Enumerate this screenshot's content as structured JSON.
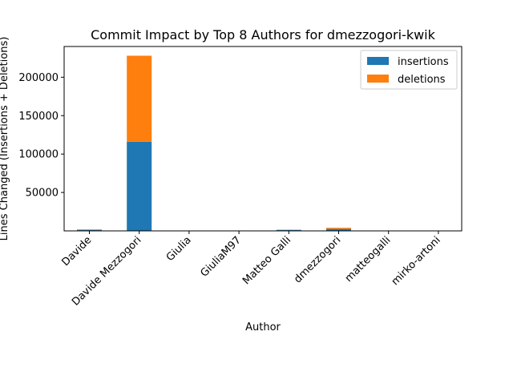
{
  "chart_data": {
    "type": "bar",
    "stacked": true,
    "title": "Commit Impact by Top 8 Authors for dmezzogori-kwik",
    "xlabel": "Author",
    "ylabel": "Lines Changed (Insertions + Deletions)",
    "categories": [
      "Davide",
      "Davide Mezzogori",
      "Giulia",
      "GiuliaM97",
      "Matteo Galli",
      "dmezzogori",
      "matteogalli",
      "mirko-artoni"
    ],
    "series": [
      {
        "name": "insertions",
        "color": "#1f77b4",
        "values": [
          1200,
          116000,
          50,
          30,
          1100,
          2500,
          80,
          60
        ]
      },
      {
        "name": "deletions",
        "color": "#ff7f0e",
        "values": [
          800,
          112000,
          40,
          20,
          500,
          1500,
          60,
          40
        ]
      }
    ],
    "ylim": [
      0,
      240000
    ],
    "yticks": [
      50000,
      100000,
      150000,
      200000
    ],
    "legend_position": "top-right",
    "grid": false
  }
}
